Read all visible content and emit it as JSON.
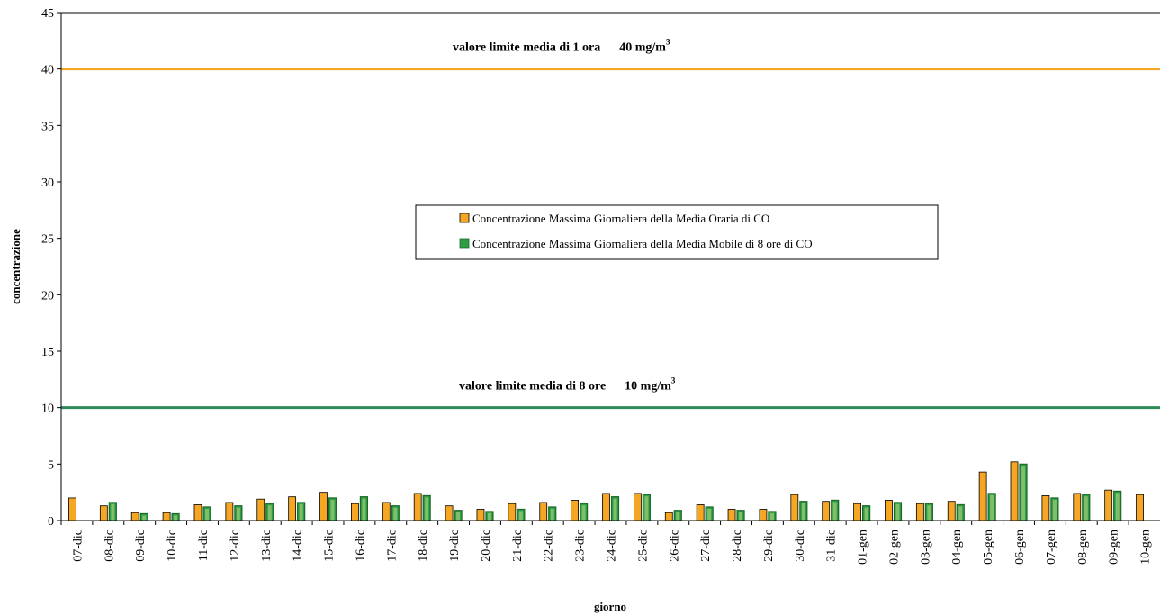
{
  "chart_data": {
    "type": "bar",
    "xlabel": "giorno",
    "ylabel": "concentrazione",
    "ylim": [
      0,
      45
    ],
    "yticks": [
      0,
      5,
      10,
      15,
      20,
      25,
      30,
      35,
      40,
      45
    ],
    "grid": false,
    "legend_placement": "center",
    "categories": [
      "07-dic",
      "08-dic",
      "09-dic",
      "10-dic",
      "11-dic",
      "12-dic",
      "13-dic",
      "14-dic",
      "15-dic",
      "16-dic",
      "17-dic",
      "18-dic",
      "19-dic",
      "20-dic",
      "21-dic",
      "22-dic",
      "23-dic",
      "24-dic",
      "25-dic",
      "26-dic",
      "27-dic",
      "28-dic",
      "29-dic",
      "30-dic",
      "31-dic",
      "01-gen",
      "02-gen",
      "03-gen",
      "04-gen",
      "05-gen",
      "06-gen",
      "07-gen",
      "08-gen",
      "09-gen",
      "10-gen"
    ],
    "series": [
      {
        "name": "Concentrazione Massima Giornaliera della Media Oraria di CO",
        "color": "#F5A623",
        "values": [
          2.0,
          1.3,
          0.7,
          0.7,
          1.4,
          1.6,
          1.9,
          2.1,
          2.5,
          1.5,
          1.6,
          2.4,
          1.3,
          1.0,
          1.5,
          1.6,
          1.8,
          2.4,
          2.4,
          0.7,
          1.4,
          1.0,
          1.0,
          2.3,
          1.7,
          1.5,
          1.8,
          1.5,
          1.7,
          4.3,
          5.2,
          2.2,
          2.4,
          2.7,
          2.3
        ]
      },
      {
        "name": "Concentrazione Massima Giornaliera della Media Mobile di 8 ore di CO",
        "color": "#2E9E44",
        "values": [
          null,
          1.6,
          0.6,
          0.6,
          1.2,
          1.3,
          1.5,
          1.6,
          2.0,
          2.1,
          1.3,
          2.2,
          0.9,
          0.8,
          1.0,
          1.2,
          1.5,
          2.1,
          2.3,
          0.9,
          1.2,
          0.9,
          0.8,
          1.7,
          1.8,
          1.3,
          1.6,
          1.5,
          1.4,
          2.4,
          5.0,
          2.0,
          2.3,
          2.6,
          null
        ]
      }
    ],
    "reference_lines": [
      {
        "value": 40,
        "label": "valore limite media di 1 ora      40 mg/m",
        "sup": "3",
        "color": "#F5A623"
      },
      {
        "value": 10,
        "label": "valore limite media di 8 ore      10 mg/m",
        "sup": "3",
        "color": "#2E8B57"
      }
    ]
  }
}
